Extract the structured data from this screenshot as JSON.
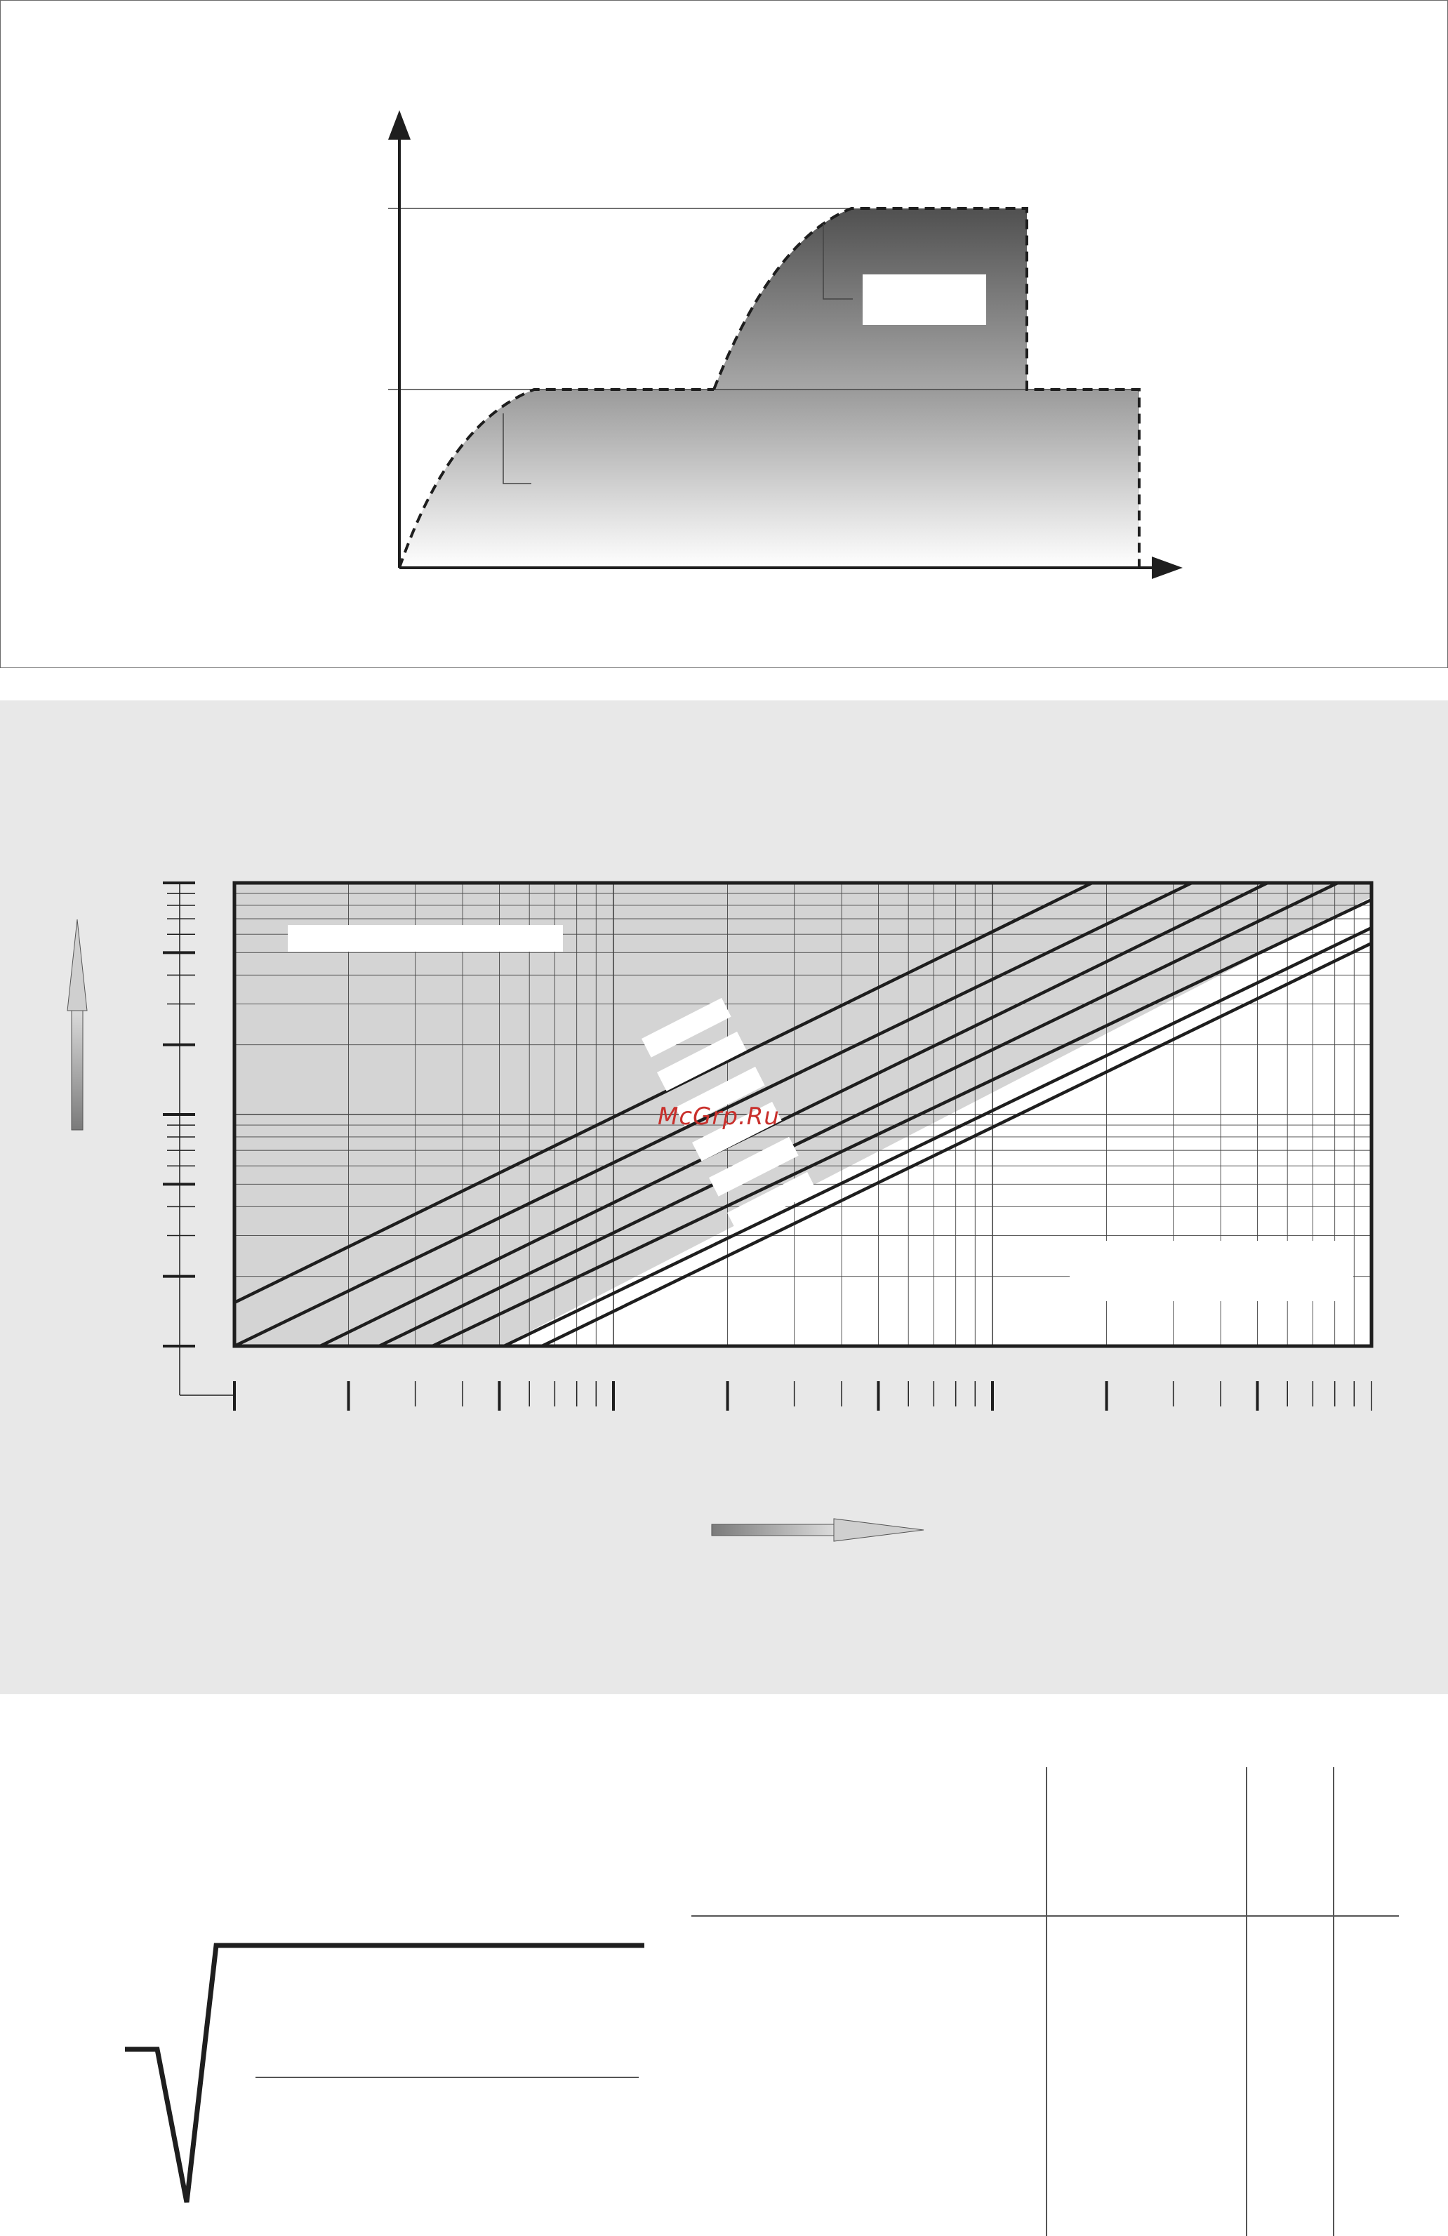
{
  "watermark": {
    "text": "McGrp.Ru"
  },
  "top_diagram": {
    "axis_color": "#1e1e1e",
    "dark_fill": "#555555",
    "light_fill": "#aaaaaa"
  },
  "log_chart": {
    "background": "#e8e8e8",
    "shaded_region": "#d4d4d4",
    "line_color": "#1e1e1e",
    "diagonal_line_count": 7
  },
  "bottom_diagram": {
    "line_color": "#1e1e1e"
  }
}
